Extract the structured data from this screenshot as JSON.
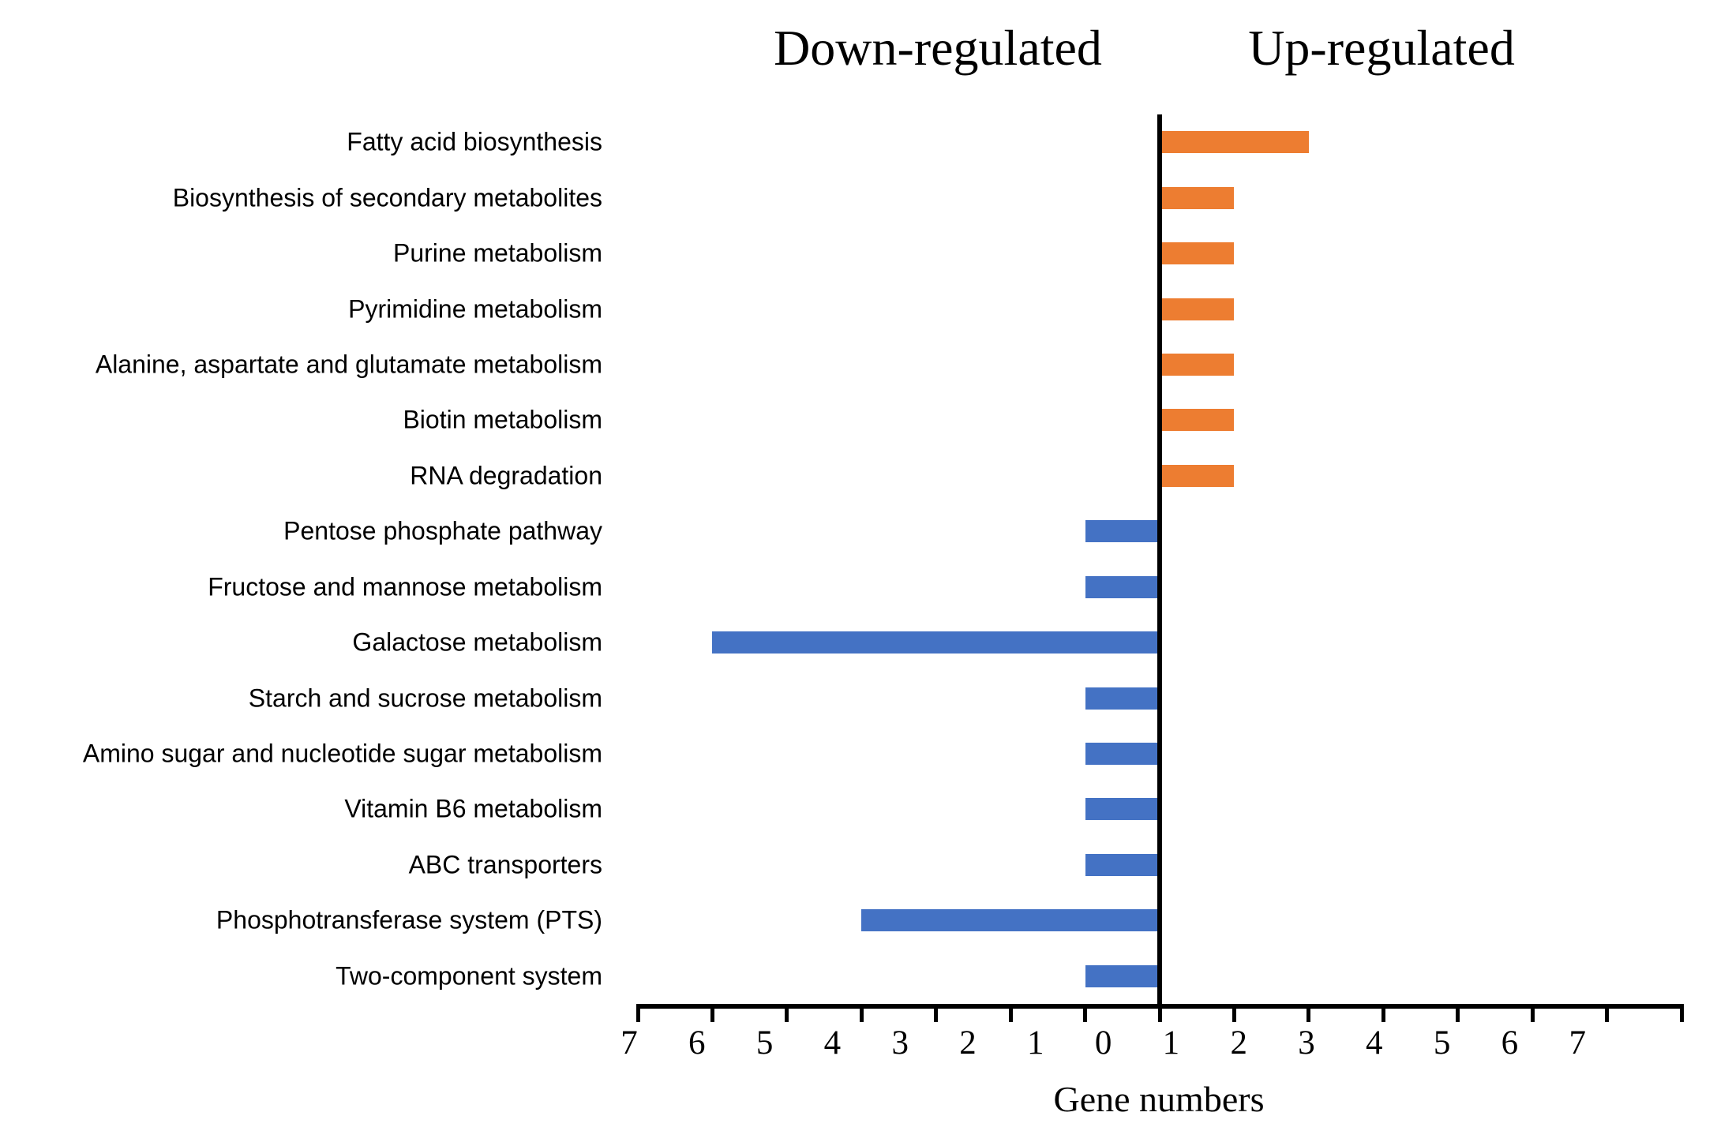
{
  "chart_data": {
    "type": "bar",
    "subtype": "diverging-horizontal-tornado",
    "title": "",
    "xlabel": "Gene numbers",
    "ylabel": "",
    "column_titles": {
      "down": "Down-regulated",
      "up": "Up-regulated"
    },
    "axis": {
      "tick_labels": [
        "7",
        "6",
        "5",
        "4",
        "3",
        "2",
        "1",
        "0",
        "1",
        "2",
        "3",
        "4",
        "5",
        "6",
        "7"
      ],
      "value_range_abs": [
        0,
        7
      ],
      "grid": false,
      "zero_baseline_line": true
    },
    "colors": {
      "up": "#ED7D31",
      "down": "#4472C4",
      "axis": "#000000"
    },
    "categories": [
      "Fatty acid biosynthesis",
      "Biosynthesis of secondary metabolites",
      "Purine metabolism",
      "Pyrimidine metabolism",
      "Alanine, aspartate and glutamate metabolism",
      "Biotin metabolism",
      "RNA degradation",
      "Pentose phosphate pathway",
      "Fructose and mannose metabolism",
      "Galactose metabolism",
      "Starch and sucrose metabolism",
      "Amino sugar and nucleotide sugar metabolism",
      "Vitamin B6 metabolism",
      "ABC transporters",
      "Phosphotransferase system (PTS)",
      "Two-component system"
    ],
    "series": [
      {
        "name": "Up-regulated",
        "color": "#ED7D31",
        "values": [
          2,
          1,
          1,
          1,
          1,
          1,
          1,
          0,
          0,
          0,
          0,
          0,
          0,
          0,
          0,
          0
        ]
      },
      {
        "name": "Down-regulated",
        "color": "#4472C4",
        "values": [
          0,
          0,
          0,
          0,
          0,
          0,
          0,
          1,
          1,
          6,
          1,
          1,
          1,
          1,
          4,
          1
        ]
      }
    ]
  }
}
